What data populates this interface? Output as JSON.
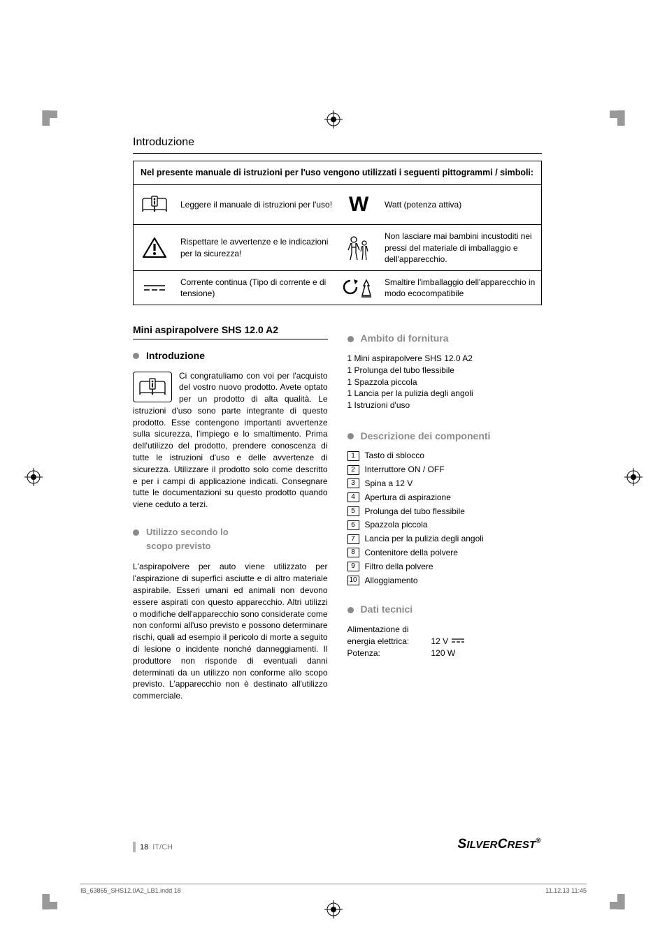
{
  "running_head": "Introduzione",
  "symbol_table": {
    "header": "Nel presente manuale di istruzioni per l'uso vengono utilizzati i seguenti pittogrammi / simboli:",
    "rows": [
      {
        "left_text": "Leggere il manuale di istruzioni per l'uso!",
        "right_text": "Watt (potenza attiva)",
        "right_symbol": "W"
      },
      {
        "left_text": "Rispettare le avvertenze e le indicazioni per la sicurezza!",
        "right_text": "Non lasciare mai bambini incustoditi nei pressi del materiale di imballaggio e dell'apparecchio."
      },
      {
        "left_text": "Corrente continua (Tipo di corrente e di tensione)",
        "right_text": "Smaltire l'imballaggio dell'apparecchio in modo ecocompatibile"
      }
    ]
  },
  "product_title": "Mini aspirapolvere SHS 12.0 A2",
  "sections": {
    "intro_heading": "Introduzione",
    "intro_body": "Ci congratuliamo con voi per l'acquisto del vostro nuovo prodotto. Avete optato per un prodotto di alta qualità. Le istruzioni d'uso sono parte integrante di questo prodotto. Esse contengono importanti avvertenze sulla sicurezza, l'impiego e lo smaltimento. Prima dell'utilizzo del prodotto, prendere conoscenza di tutte le istruzioni d'uso e delle avvertenze di sicurezza. Utilizzare il prodotto solo come descritto e per i campi di applicazione indicati. Consegnare tutte le documentazioni su questo prodotto quando viene ceduto a terzi.",
    "usage_heading_l1": "Utilizzo secondo lo",
    "usage_heading_l2": "scopo previsto",
    "usage_body": "L'aspirapolvere per auto viene utilizzato per l'aspirazione di superfici asciutte e di altro materiale aspirabile. Esseri umani ed animali non devono essere aspirati con questo apparecchio. Altri utilizzi o modifiche dell'apparecchio sono considerate come non conformi all'uso previsto e possono determinare rischi, quali ad esempio il pericolo di morte a seguito di lesione o incidente nonché danneggiamenti. Il produttore non risponde di eventuali danni determinati da un utilizzo non conforme allo scopo previsto. L'apparecchio non è destinato all'utilizzo commerciale.",
    "supply_heading": "Ambito di fornitura",
    "supply_items": [
      "1 Mini aspirapolvere SHS 12.0 A2",
      "1 Prolunga del tubo flessibile",
      "1 Spazzola piccola",
      "1 Lancia per la pulizia degli angoli",
      "1 Istruzioni d'uso"
    ],
    "components_heading": "Descrizione dei componenti",
    "components": [
      "Tasto di sblocco",
      "Interruttore ON / OFF",
      "Spina a 12 V",
      "Apertura di aspirazione",
      "Prolunga del tubo flessibile",
      "Spazzola piccola",
      "Lancia per la pulizia degli angoli",
      "Contenitore della polvere",
      "Filtro della polvere",
      "Alloggiamento"
    ],
    "tech_heading": "Dati tecnici",
    "tech_l1": "Alimentazione di",
    "tech_rows": [
      {
        "k": "energia elettrica:",
        "v": "12 V"
      },
      {
        "k": "Potenza:",
        "v": "120 W"
      }
    ]
  },
  "footer": {
    "page": "18",
    "region": "IT/CH",
    "brand": "SilverCrest"
  },
  "printline": {
    "left": "IB_63865_SHS12.0A2_LB1.indd   18",
    "right": "11.12.13   11:45"
  },
  "colors": {
    "muted": "#8a8a8a"
  }
}
